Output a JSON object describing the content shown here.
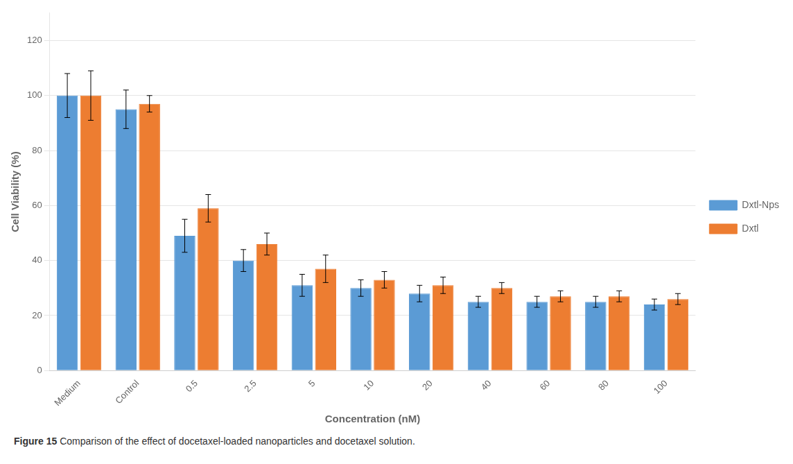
{
  "chart_data": {
    "type": "bar",
    "categories": [
      "Medium",
      "Control",
      "0.5",
      "2.5",
      "5",
      "10",
      "20",
      "40",
      "60",
      "80",
      "100"
    ],
    "series": [
      {
        "name": "Dxtl-Nps",
        "color": "#5B9BD5",
        "values": [
          100,
          95,
          49,
          40,
          31,
          30,
          28,
          25,
          25,
          25,
          24
        ],
        "errors": [
          8,
          7,
          6,
          4,
          4,
          3,
          3,
          2,
          2,
          2,
          2
        ]
      },
      {
        "name": "Dxtl",
        "color": "#ED7D31",
        "values": [
          100,
          97,
          59,
          46,
          37,
          33,
          31,
          30,
          27,
          27,
          26
        ],
        "errors": [
          9,
          3,
          5,
          4,
          5,
          3,
          3,
          2,
          2,
          2,
          2
        ]
      }
    ],
    "xlabel": "Concentration (nM)",
    "ylabel": "Cell Viability (%)",
    "ylim": [
      0,
      130
    ],
    "yticks": [
      0,
      20,
      40,
      60,
      80,
      100,
      120
    ],
    "grid": true,
    "legend": "right",
    "annotations": [
      "Figure 15",
      "Comparison of the effect of docetaxel-loaded nanoparticles and docetaxel solution."
    ]
  }
}
